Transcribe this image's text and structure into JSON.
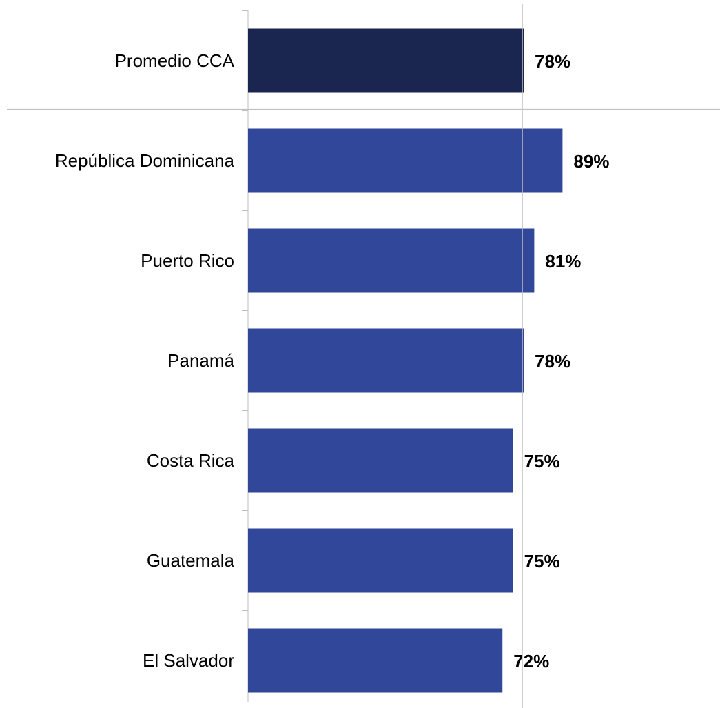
{
  "chart_data": {
    "type": "bar",
    "orientation": "horizontal",
    "title": "",
    "xlabel": "",
    "ylabel": "",
    "categories": [
      "Promedio CCA",
      "República Dominicana",
      "Puerto Rico",
      "Panamá",
      "Costa Rica",
      "Guatemala",
      "El Salvador"
    ],
    "values": [
      78,
      89,
      81,
      78,
      75,
      75,
      72
    ],
    "value_labels": [
      "78%",
      "89%",
      "81%",
      "78%",
      "75%",
      "75%",
      "72%"
    ],
    "reference_line_value": 78,
    "grid": false,
    "colors": {
      "highlight_bar": "#1b2650",
      "bar": "#31479a",
      "reference_line": "#bfbfbf",
      "separator_line": "#c0c0c0",
      "axis_line": "#bfbfbf"
    }
  }
}
